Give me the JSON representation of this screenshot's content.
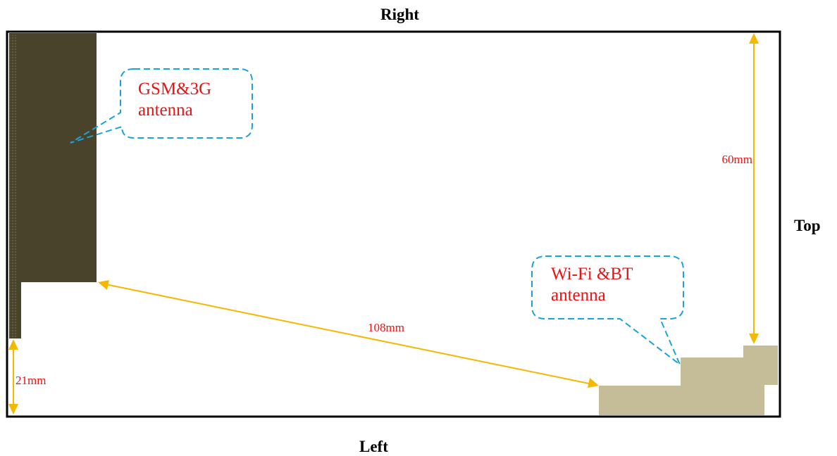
{
  "labels": {
    "right": "Right",
    "left": "Left",
    "top": "Top"
  },
  "callouts": {
    "gsm": {
      "line1": "GSM&3G",
      "line2": "antenna"
    },
    "wifi": {
      "line1": "Wi-Fi &BT",
      "line2": "antenna"
    }
  },
  "dimensions": {
    "top_distance": "60mm",
    "bottom_distance": "21mm",
    "separation": "108mm"
  },
  "colors": {
    "gsm_antenna": "#48432a",
    "wifi_antenna": "#c5bd98",
    "dimension_arrow": "#f5b800",
    "callout_border": "#1aa3d9",
    "callout_text": "#ee1111"
  }
}
